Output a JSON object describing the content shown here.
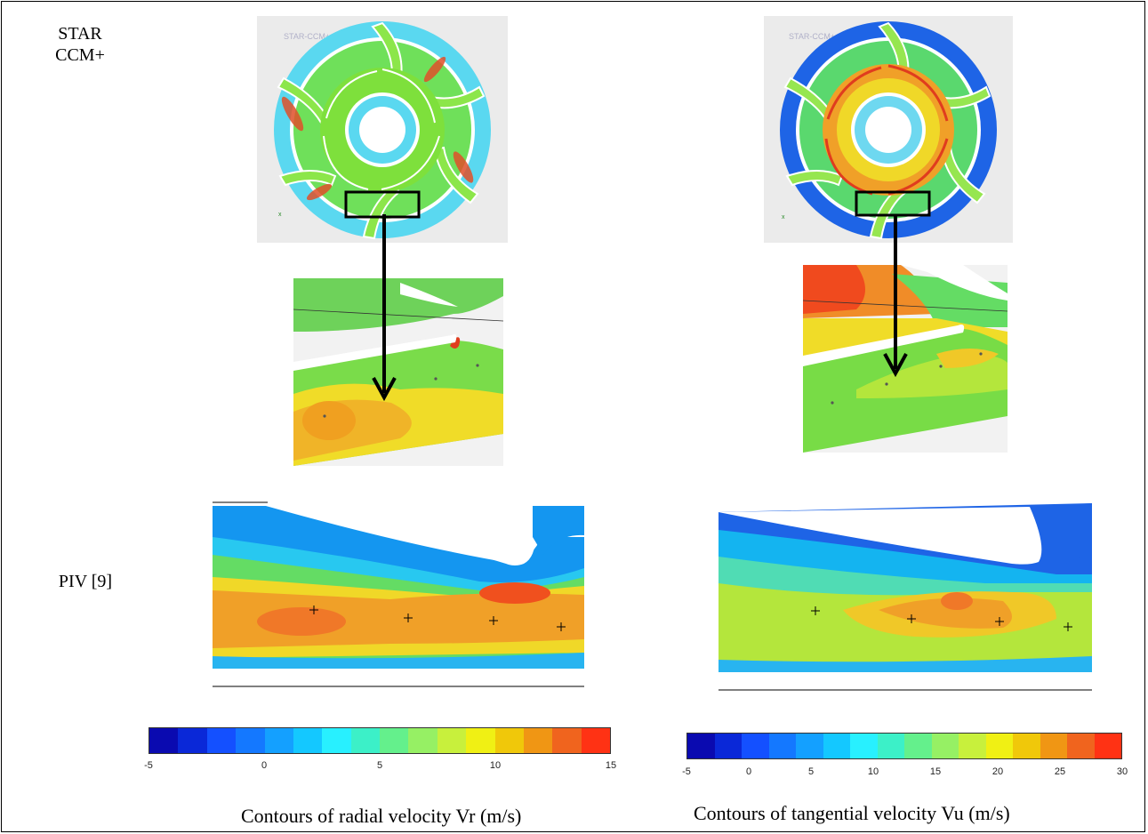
{
  "labels": {
    "star_ccm": "STAR\nCCM+",
    "piv": "PIV [9]"
  },
  "software_watermark": "STAR-CCM+",
  "captions": {
    "radial": "Contours of radial velocity Vr (m/s)",
    "tangential": "Contours of tangential velocity Vu (m/s)"
  },
  "colorbar_radial": {
    "min": -5,
    "max": 15,
    "ticks": [
      "-5",
      "0",
      "5",
      "10",
      "15"
    ],
    "colors": [
      "#0a0ab0",
      "#0a28d8",
      "#1450ff",
      "#1478ff",
      "#14a0ff",
      "#14c8ff",
      "#28f0ff",
      "#3cf0c8",
      "#64f08c",
      "#96f064",
      "#c8f03c",
      "#f0f014",
      "#f0c80a",
      "#f09614",
      "#f0641e",
      "#ff3214"
    ]
  },
  "colorbar_tangential": {
    "min": -5,
    "max": 30,
    "ticks": [
      "-5",
      "0",
      "5",
      "10",
      "15",
      "20",
      "25",
      "30"
    ],
    "colors": [
      "#0a0ab0",
      "#0a28d8",
      "#1450ff",
      "#1478ff",
      "#14a0ff",
      "#14c8ff",
      "#28f0ff",
      "#3cf0c8",
      "#64f08c",
      "#96f064",
      "#c8f03c",
      "#f0f014",
      "#f0c80a",
      "#f09614",
      "#f0641e",
      "#ff3214"
    ]
  }
}
